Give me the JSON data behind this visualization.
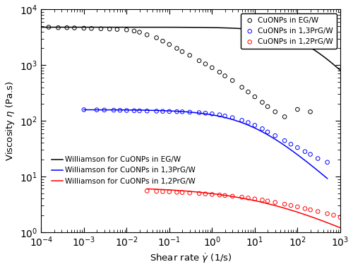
{
  "xlabel": "Shear rate $\\dot{\\gamma}$ (1/s)",
  "ylabel": "Viscosity $\\eta$ (Pa.s)",
  "xlim": [
    0.0001,
    1000.0
  ],
  "ylim": [
    1.0,
    10000.0
  ],
  "series": [
    {
      "name": "CuONPs in EG/W",
      "williamson_name": "Williamson for CuONPs in EG/W",
      "color": "black",
      "eta0": 4800,
      "K": 0.007,
      "m": 0.82,
      "fit_xmin": 0.0001,
      "fit_xmax": 1000.0,
      "dp_x": [
        0.00015,
        0.00025,
        0.0004,
        0.0006,
        0.001,
        0.0015,
        0.0025,
        0.004,
        0.006,
        0.01,
        0.015,
        0.02,
        0.03,
        0.05,
        0.07,
        0.1,
        0.15,
        0.2,
        0.3,
        0.5,
        0.7,
        1.0,
        1.5,
        2.0,
        3.0,
        5.0,
        7.0,
        10.0,
        15.0,
        20.0,
        30.0,
        50.0,
        100.0,
        200.0
      ],
      "dp_y": [
        4800,
        4700,
        4700,
        4650,
        4600,
        4550,
        4500,
        4450,
        4380,
        4300,
        4100,
        3900,
        3500,
        3100,
        2700,
        2350,
        2000,
        1750,
        1500,
        1200,
        1050,
        900,
        750,
        640,
        530,
        400,
        330,
        270,
        215,
        180,
        145,
        118,
        160,
        145
      ]
    },
    {
      "name": "CuONPs in 1,3PrG/W",
      "williamson_name": "Williamson for CuONPs in 1,3PrG/W",
      "color": "blue",
      "eta0": 158,
      "K": 0.12,
      "m": 0.68,
      "fit_xmin": 0.001,
      "fit_xmax": 500.0,
      "dp_x": [
        0.001,
        0.002,
        0.003,
        0.005,
        0.007,
        0.01,
        0.015,
        0.02,
        0.03,
        0.05,
        0.07,
        0.1,
        0.15,
        0.2,
        0.3,
        0.5,
        0.7,
        1.0,
        1.5,
        2.0,
        3.0,
        5.0,
        7.0,
        10.0,
        15.0,
        20.0,
        30.0,
        50.0,
        70.0,
        100.0,
        150.0,
        200.0,
        300.0,
        500.0
      ],
      "dp_y": [
        158,
        157,
        156,
        155,
        154,
        153,
        152,
        151,
        150,
        149,
        148,
        147,
        146,
        145,
        143,
        140,
        137,
        133,
        128,
        122,
        114,
        102,
        93,
        83,
        72,
        63,
        54,
        44,
        38,
        33,
        28,
        25,
        21,
        18
      ]
    },
    {
      "name": "CuONPs in 1,2PrG/W",
      "williamson_name": "Williamson for CuONPs in 1,2PrG/W",
      "color": "red",
      "eta0": 6.5,
      "K": 0.05,
      "m": 0.38,
      "fit_xmin": 0.03,
      "fit_xmax": 1000.0,
      "dp_x": [
        0.03,
        0.05,
        0.07,
        0.1,
        0.15,
        0.2,
        0.3,
        0.5,
        0.7,
        1.0,
        1.5,
        2.0,
        3.0,
        5.0,
        7.0,
        10.0,
        15.0,
        20.0,
        30.0,
        50.0,
        70.0,
        100.0,
        150.0,
        200.0,
        300.0,
        500.0,
        700.0,
        1000.0
      ],
      "dp_y": [
        5.5,
        5.4,
        5.35,
        5.3,
        5.2,
        5.15,
        5.05,
        4.95,
        4.85,
        4.75,
        4.65,
        4.55,
        4.42,
        4.25,
        4.1,
        3.95,
        3.78,
        3.62,
        3.42,
        3.18,
        3.02,
        2.85,
        2.65,
        2.52,
        2.35,
        2.15,
        2.02,
        1.85
      ]
    }
  ]
}
